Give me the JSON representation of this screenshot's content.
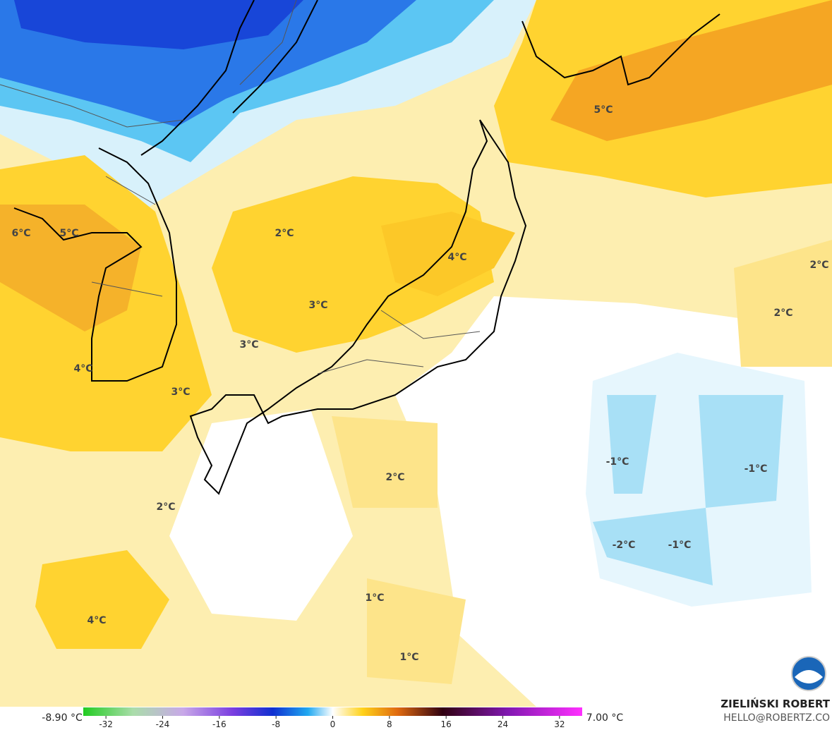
{
  "map": {
    "labels": [
      "6°C",
      "5°C",
      "2°C",
      "5°C",
      "4°C",
      "2°C",
      "3°C",
      "2°C",
      "3°C",
      "4°C",
      "3°C",
      "2°C",
      "-1°C",
      "-1°C",
      "2°C",
      "-2°C",
      "-1°C",
      "1°C",
      "4°C",
      "1°C"
    ]
  },
  "colorbar": {
    "min_label": "-8.90 °C",
    "max_label": "7.00 °C",
    "lim": [
      -35.2,
      35.2
    ],
    "ticks": [
      -32,
      -24,
      -16,
      -8,
      0,
      8,
      16,
      24,
      32
    ]
  },
  "footer": {
    "author": "ZIELIŃSKI ROBERT",
    "contact": "HELLO@ROBERTZ.CO"
  }
}
